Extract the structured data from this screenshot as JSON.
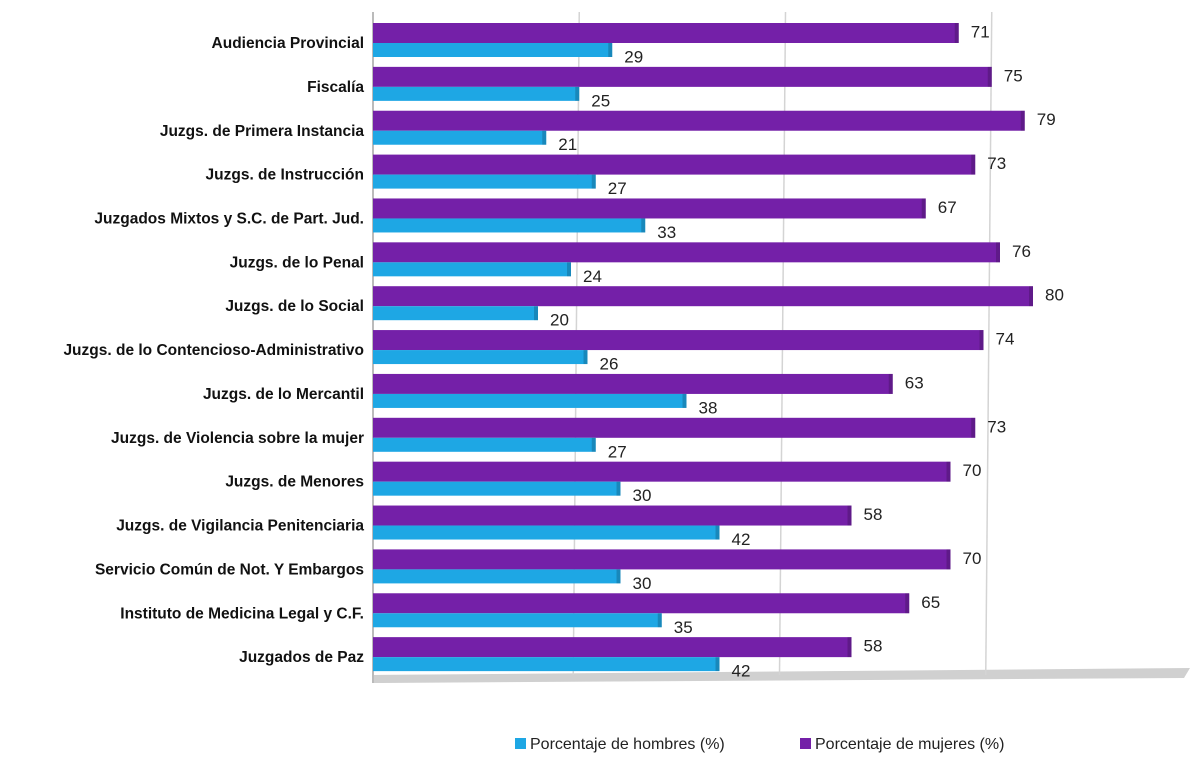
{
  "chart_data": {
    "type": "bar",
    "orientation": "horizontal",
    "categories": [
      "Audiencia Provincial",
      "Fiscalía",
      "Juzgs. de Primera Instancia",
      "Juzgs. de Instrucción",
      "Juzgados Mixtos y S.C. de Part. Jud.",
      "Juzgs. de lo Penal",
      "Juzgs. de lo Social",
      "Juzgs. de lo Contencioso-Administrativo",
      "Juzgs. de lo Mercantil",
      "Juzgs. de Violencia sobre la mujer",
      "Juzgs. de Menores",
      "Juzgs. de Vigilancia Penitenciaria",
      "Servicio Común de Not. Y Embargos",
      "Instituto de Medicina Legal y C.F.",
      "Juzgados de Paz"
    ],
    "series": [
      {
        "name": "Porcentaje de hombres (%)",
        "color": "#1ea7e4",
        "values": [
          29,
          25,
          21,
          27,
          33,
          24,
          20,
          26,
          38,
          27,
          30,
          42,
          30,
          35,
          42
        ]
      },
      {
        "name": "Porcentaje de mujeres (%)",
        "color": "#7420a8",
        "values": [
          71,
          75,
          79,
          73,
          67,
          76,
          80,
          74,
          63,
          73,
          70,
          58,
          70,
          65,
          58
        ]
      }
    ],
    "xlim": [
      0,
      100
    ],
    "xticks": [
      0,
      25,
      50,
      75,
      100
    ],
    "tick_labels": false,
    "grid": true,
    "legend": "bottom"
  }
}
